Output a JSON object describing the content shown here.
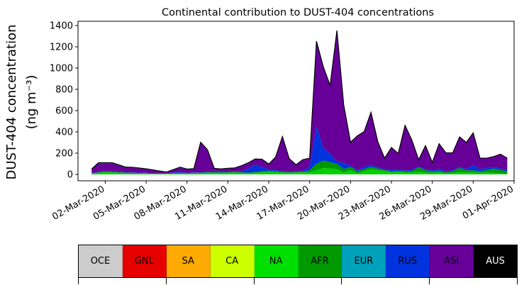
{
  "chart_data": {
    "type": "area",
    "title": "Continental contribution to DUST-404 concentrations",
    "ylabel_line1": "DUST-404 concentration",
    "ylabel_line2": "(ng m⁻³)",
    "xlabel": "",
    "ylim": [
      -60,
      1440
    ],
    "yticks": [
      0,
      200,
      400,
      600,
      800,
      1000,
      1200,
      1400
    ],
    "x_start": "2020-02-29",
    "x_end": "2020-04-01",
    "xtick_labels": [
      "02-Mar-2020",
      "05-Mar-2020",
      "08-Mar-2020",
      "11-Mar-2020",
      "14-Mar-2020",
      "17-Mar-2020",
      "20-Mar-2020",
      "23-Mar-2020",
      "26-Mar-2020",
      "29-Mar-2020",
      "01-Apr-2020"
    ],
    "x": [
      "2020-03-01",
      "2020-03-01.5",
      "2020-03-02",
      "2020-03-02.5",
      "2020-03-03",
      "2020-03-03.5",
      "2020-03-04",
      "2020-03-04.5",
      "2020-03-05",
      "2020-03-05.5",
      "2020-03-06",
      "2020-03-06.5",
      "2020-03-07",
      "2020-03-07.5",
      "2020-03-08",
      "2020-03-08.5",
      "2020-03-09",
      "2020-03-09.5",
      "2020-03-10",
      "2020-03-10.5",
      "2020-03-11",
      "2020-03-11.5",
      "2020-03-12",
      "2020-03-12.5",
      "2020-03-13",
      "2020-03-13.5",
      "2020-03-14",
      "2020-03-14.5",
      "2020-03-15",
      "2020-03-15.5",
      "2020-03-16",
      "2020-03-16.5",
      "2020-03-17",
      "2020-03-17.5",
      "2020-03-18",
      "2020-03-18.5",
      "2020-03-19",
      "2020-03-19.5",
      "2020-03-20",
      "2020-03-20.5",
      "2020-03-21",
      "2020-03-21.5",
      "2020-03-22",
      "2020-03-22.5",
      "2020-03-23",
      "2020-03-23.5",
      "2020-03-24",
      "2020-03-24.5",
      "2020-03-25",
      "2020-03-25.5",
      "2020-03-26",
      "2020-03-26.5",
      "2020-03-27",
      "2020-03-27.5",
      "2020-03-28",
      "2020-03-28.5",
      "2020-03-29",
      "2020-03-29.5",
      "2020-03-30",
      "2020-03-30.5",
      "2020-03-31",
      "2020-03-31.5"
    ],
    "x_days": [
      1,
      1.5,
      2,
      2.5,
      3,
      3.5,
      4,
      4.5,
      5,
      5.5,
      6,
      6.5,
      7,
      7.5,
      8,
      8.5,
      9,
      9.5,
      10,
      10.5,
      11,
      11.5,
      12,
      12.5,
      13,
      13.5,
      14,
      14.5,
      15,
      15.5,
      16,
      16.5,
      17,
      17.5,
      18,
      18.5,
      19,
      19.5,
      20,
      20.5,
      21,
      21.5,
      22,
      22.5,
      23,
      23.5,
      24,
      24.5,
      25,
      25.5,
      26,
      26.5,
      27,
      27.5,
      28,
      28.5,
      29,
      29.5,
      30,
      30.5,
      31,
      31.5
    ],
    "series": [
      {
        "name": "NA",
        "color": "#00d000",
        "values": [
          10,
          15,
          20,
          18,
          15,
          12,
          10,
          8,
          8,
          5,
          5,
          5,
          8,
          10,
          8,
          10,
          12,
          14,
          15,
          15,
          15,
          18,
          14,
          12,
          14,
          20,
          25,
          22,
          18,
          15,
          18,
          18,
          20,
          40,
          60,
          55,
          50,
          20,
          40,
          10,
          30,
          50,
          40,
          30,
          20,
          22,
          20,
          20,
          25,
          18,
          15,
          20,
          10,
          15,
          20,
          18,
          18,
          15,
          20,
          15,
          12,
          10
        ]
      },
      {
        "name": "AFR",
        "color": "#009900",
        "values": [
          0,
          5,
          8,
          6,
          5,
          5,
          5,
          5,
          4,
          3,
          3,
          3,
          5,
          5,
          5,
          5,
          5,
          5,
          5,
          5,
          5,
          5,
          5,
          5,
          8,
          10,
          10,
          8,
          5,
          5,
          5,
          8,
          20,
          60,
          70,
          60,
          50,
          30,
          30,
          20,
          20,
          20,
          15,
          10,
          10,
          12,
          10,
          12,
          40,
          20,
          15,
          15,
          10,
          15,
          40,
          20,
          20,
          15,
          20,
          40,
          30,
          20
        ]
      },
      {
        "name": "RUS",
        "color": "#0033dd",
        "values": [
          3,
          3,
          3,
          3,
          3,
          3,
          3,
          3,
          3,
          2,
          2,
          2,
          5,
          8,
          3,
          3,
          3,
          10,
          15,
          10,
          5,
          5,
          10,
          40,
          70,
          40,
          10,
          10,
          10,
          5,
          5,
          10,
          30,
          350,
          120,
          80,
          20,
          60,
          10,
          10,
          20,
          20,
          10,
          10,
          10,
          10,
          8,
          8,
          10,
          10,
          10,
          20,
          10,
          10,
          10,
          10,
          50,
          20,
          20,
          10,
          15,
          10
        ]
      },
      {
        "name": "ASI",
        "color": "#660099",
        "values": [
          32,
          82,
          75,
          78,
          62,
          45,
          45,
          40,
          35,
          30,
          20,
          10,
          25,
          40,
          30,
          32,
          280,
          200,
          20,
          20,
          30,
          30,
          50,
          50,
          50,
          70,
          50,
          120,
          320,
          120,
          60,
          100,
          80,
          800,
          760,
          640,
          1230,
          540,
          220,
          320,
          330,
          490,
          240,
          100,
          210,
          150,
          420,
          280,
          60,
          220,
          70,
          230,
          170,
          160,
          280,
          250,
          300,
          100,
          90,
          100,
          130,
          110
        ]
      },
      {
        "name": "EUR",
        "color": "#00a2bb",
        "values": [
          5,
          5,
          4,
          5,
          5,
          4,
          4,
          4,
          3,
          3,
          2,
          3,
          2,
          5,
          4,
          4,
          3,
          3,
          2,
          2,
          3,
          3,
          3,
          3,
          3,
          3,
          3,
          3,
          3,
          3,
          3,
          3,
          3,
          3,
          3,
          3,
          3,
          3,
          3,
          3,
          3,
          3,
          3,
          3,
          3,
          3,
          3,
          3,
          3,
          3,
          3,
          3,
          3,
          3,
          3,
          3,
          3,
          3,
          3,
          3,
          3,
          2
        ]
      }
    ],
    "legend": [
      {
        "name": "OCE",
        "color": "#cccccc",
        "text_color": "#000000"
      },
      {
        "name": "GNL",
        "color": "#e60000",
        "text_color": "#000000"
      },
      {
        "name": "SA",
        "color": "#ffaa00",
        "text_color": "#000000"
      },
      {
        "name": "CA",
        "color": "#ccff00",
        "text_color": "#000000"
      },
      {
        "name": "NA",
        "color": "#00e000",
        "text_color": "#000000"
      },
      {
        "name": "AFR",
        "color": "#009900",
        "text_color": "#000000"
      },
      {
        "name": "EUR",
        "color": "#00a2bb",
        "text_color": "#000000"
      },
      {
        "name": "RUS",
        "color": "#0033dd",
        "text_color": "#000000"
      },
      {
        "name": "ASI",
        "color": "#660099",
        "text_color": "#000000"
      },
      {
        "name": "AUS",
        "color": "#000000",
        "text_color": "#ffffff"
      }
    ],
    "grid": false,
    "legend_placement": "bottom"
  }
}
